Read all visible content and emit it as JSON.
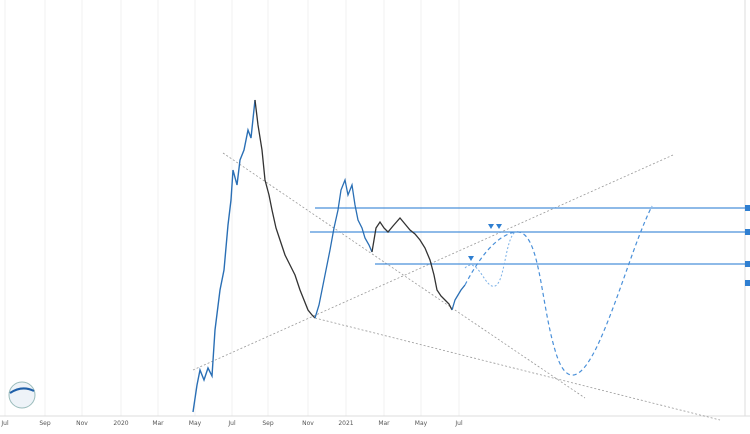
{
  "time_axis": {
    "labels": [
      "Jul",
      "Sep",
      "Nov",
      "2020",
      "Mar",
      "May",
      "Jul",
      "Sep",
      "Nov",
      "2021",
      "Mar",
      "May",
      "Jul"
    ]
  }
}
